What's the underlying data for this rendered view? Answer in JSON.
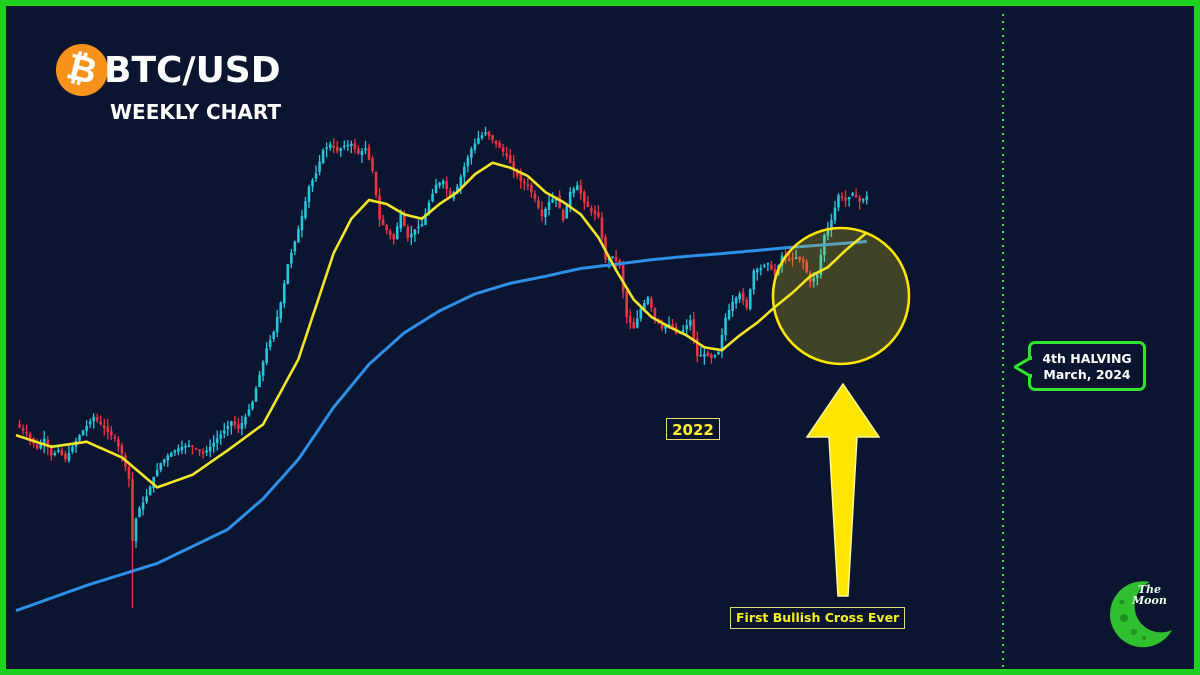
{
  "title": {
    "logo_symbol": "₿",
    "pair": "BTC/USD",
    "subtitle": "WEEKLY CHART"
  },
  "labels": {
    "year_2022": "2022",
    "first_cross": "First Bullish Cross Ever",
    "halving_line1": "4th HALVING",
    "halving_line2": "March, 2024"
  },
  "watermark": {
    "line1": "The",
    "line2": "Moon"
  },
  "colors": {
    "background": "#0b1530",
    "frame": "#1fd11f",
    "up_candle": "#26c6da",
    "down_candle": "#ef3340",
    "ma_short": "#f2e52a",
    "ma_long": "#2e8fe8",
    "highlight": "#ffe600",
    "halving_line": "#3de33d",
    "btc_orange": "#f7931a"
  },
  "chart_data": {
    "type": "candlestick",
    "timeframe": "weekly",
    "symbol": "BTC/USD",
    "price_range": [
      3000,
      70000
    ],
    "grid": false,
    "legend": "none",
    "series": [
      {
        "kind": "price",
        "points": [
          [
            0,
            11200
          ],
          [
            3,
            10600
          ],
          [
            6,
            9700
          ],
          [
            8,
            10300
          ],
          [
            10,
            9300
          ],
          [
            12,
            9600
          ],
          [
            14,
            9100
          ],
          [
            16,
            9800
          ],
          [
            18,
            10500
          ],
          [
            20,
            11100
          ],
          [
            22,
            11700
          ],
          [
            24,
            11200
          ],
          [
            26,
            10700
          ],
          [
            28,
            10300
          ],
          [
            30,
            9400
          ],
          [
            32,
            8100
          ],
          [
            33,
            5600
          ],
          [
            34,
            6400
          ],
          [
            35,
            6800
          ],
          [
            37,
            7300
          ],
          [
            39,
            8200
          ],
          [
            41,
            8900
          ],
          [
            43,
            9300
          ],
          [
            45,
            9600
          ],
          [
            47,
            9800
          ],
          [
            49,
            9900
          ],
          [
            51,
            9700
          ],
          [
            53,
            9400
          ],
          [
            55,
            9800
          ],
          [
            57,
            10300
          ],
          [
            59,
            10800
          ],
          [
            61,
            11400
          ],
          [
            63,
            10900
          ],
          [
            65,
            11700
          ],
          [
            67,
            12800
          ],
          [
            69,
            15000
          ],
          [
            71,
            17600
          ],
          [
            73,
            19400
          ],
          [
            75,
            23100
          ],
          [
            77,
            29000
          ],
          [
            79,
            33200
          ],
          [
            81,
            38600
          ],
          [
            83,
            46000
          ],
          [
            85,
            49800
          ],
          [
            87,
            57200
          ],
          [
            89,
            59100
          ],
          [
            91,
            56800
          ],
          [
            93,
            58700
          ],
          [
            95,
            59300
          ],
          [
            97,
            55900
          ],
          [
            99,
            57700
          ],
          [
            101,
            50500
          ],
          [
            103,
            37800
          ],
          [
            105,
            35500
          ],
          [
            107,
            33600
          ],
          [
            109,
            39200
          ],
          [
            111,
            33900
          ],
          [
            113,
            35700
          ],
          [
            115,
            36800
          ],
          [
            117,
            41800
          ],
          [
            119,
            46500
          ],
          [
            121,
            47600
          ],
          [
            123,
            43200
          ],
          [
            125,
            46000
          ],
          [
            127,
            51800
          ],
          [
            129,
            57600
          ],
          [
            131,
            61400
          ],
          [
            133,
            63500
          ],
          [
            135,
            60800
          ],
          [
            137,
            58000
          ],
          [
            139,
            55200
          ],
          [
            141,
            50800
          ],
          [
            143,
            47500
          ],
          [
            145,
            46300
          ],
          [
            147,
            42700
          ],
          [
            149,
            38600
          ],
          [
            151,
            42000
          ],
          [
            153,
            43300
          ],
          [
            155,
            37700
          ],
          [
            157,
            44600
          ],
          [
            159,
            46300
          ],
          [
            161,
            41900
          ],
          [
            163,
            39700
          ],
          [
            165,
            38500
          ],
          [
            167,
            29800
          ],
          [
            169,
            30400
          ],
          [
            171,
            28700
          ],
          [
            173,
            21200
          ],
          [
            175,
            19800
          ],
          [
            177,
            22300
          ],
          [
            179,
            23800
          ],
          [
            181,
            21100
          ],
          [
            183,
            19800
          ],
          [
            185,
            20300
          ],
          [
            187,
            19300
          ],
          [
            189,
            19600
          ],
          [
            191,
            20800
          ],
          [
            193,
            16800
          ],
          [
            195,
            17000
          ],
          [
            197,
            16600
          ],
          [
            199,
            17200
          ],
          [
            201,
            21100
          ],
          [
            203,
            23200
          ],
          [
            205,
            24300
          ],
          [
            207,
            22400
          ],
          [
            209,
            27900
          ],
          [
            211,
            28400
          ],
          [
            213,
            29200
          ],
          [
            215,
            27100
          ],
          [
            217,
            30500
          ],
          [
            219,
            29900
          ],
          [
            221,
            30200
          ],
          [
            223,
            29400
          ],
          [
            225,
            26100
          ],
          [
            227,
            27200
          ],
          [
            229,
            34500
          ],
          [
            231,
            37700
          ],
          [
            233,
            43700
          ],
          [
            235,
            42300
          ],
          [
            237,
            44200
          ],
          [
            239,
            42100
          ],
          [
            241,
            43400
          ]
        ]
      },
      {
        "kind": "moving_average",
        "role": "short",
        "points": [
          [
            0,
            10500
          ],
          [
            10,
            9800
          ],
          [
            20,
            10100
          ],
          [
            30,
            9200
          ],
          [
            40,
            7700
          ],
          [
            50,
            8300
          ],
          [
            60,
            9600
          ],
          [
            70,
            11200
          ],
          [
            80,
            16500
          ],
          [
            90,
            31000
          ],
          [
            95,
            38000
          ],
          [
            100,
            42500
          ],
          [
            105,
            41500
          ],
          [
            110,
            39000
          ],
          [
            115,
            38000
          ],
          [
            120,
            41500
          ],
          [
            125,
            44500
          ],
          [
            130,
            49500
          ],
          [
            135,
            53000
          ],
          [
            140,
            51500
          ],
          [
            145,
            49000
          ],
          [
            150,
            44500
          ],
          [
            155,
            42000
          ],
          [
            160,
            39000
          ],
          [
            165,
            34000
          ],
          [
            170,
            28000
          ],
          [
            175,
            23500
          ],
          [
            180,
            21200
          ],
          [
            185,
            20000
          ],
          [
            190,
            19000
          ],
          [
            195,
            17700
          ],
          [
            200,
            17400
          ],
          [
            205,
            19000
          ],
          [
            210,
            20500
          ],
          [
            215,
            22500
          ],
          [
            220,
            24500
          ],
          [
            225,
            27000
          ],
          [
            230,
            28500
          ],
          [
            235,
            31500
          ],
          [
            241,
            35000
          ]
        ]
      },
      {
        "kind": "moving_average",
        "role": "long",
        "points": [
          [
            0,
            3700
          ],
          [
            20,
            4300
          ],
          [
            40,
            4900
          ],
          [
            60,
            6000
          ],
          [
            70,
            7200
          ],
          [
            80,
            9100
          ],
          [
            90,
            12400
          ],
          [
            100,
            16000
          ],
          [
            110,
            19300
          ],
          [
            120,
            22000
          ],
          [
            130,
            24300
          ],
          [
            140,
            25900
          ],
          [
            150,
            27000
          ],
          [
            160,
            28300
          ],
          [
            170,
            29000
          ],
          [
            180,
            29800
          ],
          [
            190,
            30400
          ],
          [
            200,
            30900
          ],
          [
            210,
            31500
          ],
          [
            220,
            32100
          ],
          [
            230,
            32600
          ],
          [
            241,
            33200
          ]
        ]
      }
    ],
    "annotations": [
      {
        "text": "2022",
        "x": 178
      },
      {
        "text": "First Bullish Cross Ever",
        "x": 222
      },
      {
        "text": "4th HALVING March, 2024",
        "x": 275
      }
    ]
  }
}
